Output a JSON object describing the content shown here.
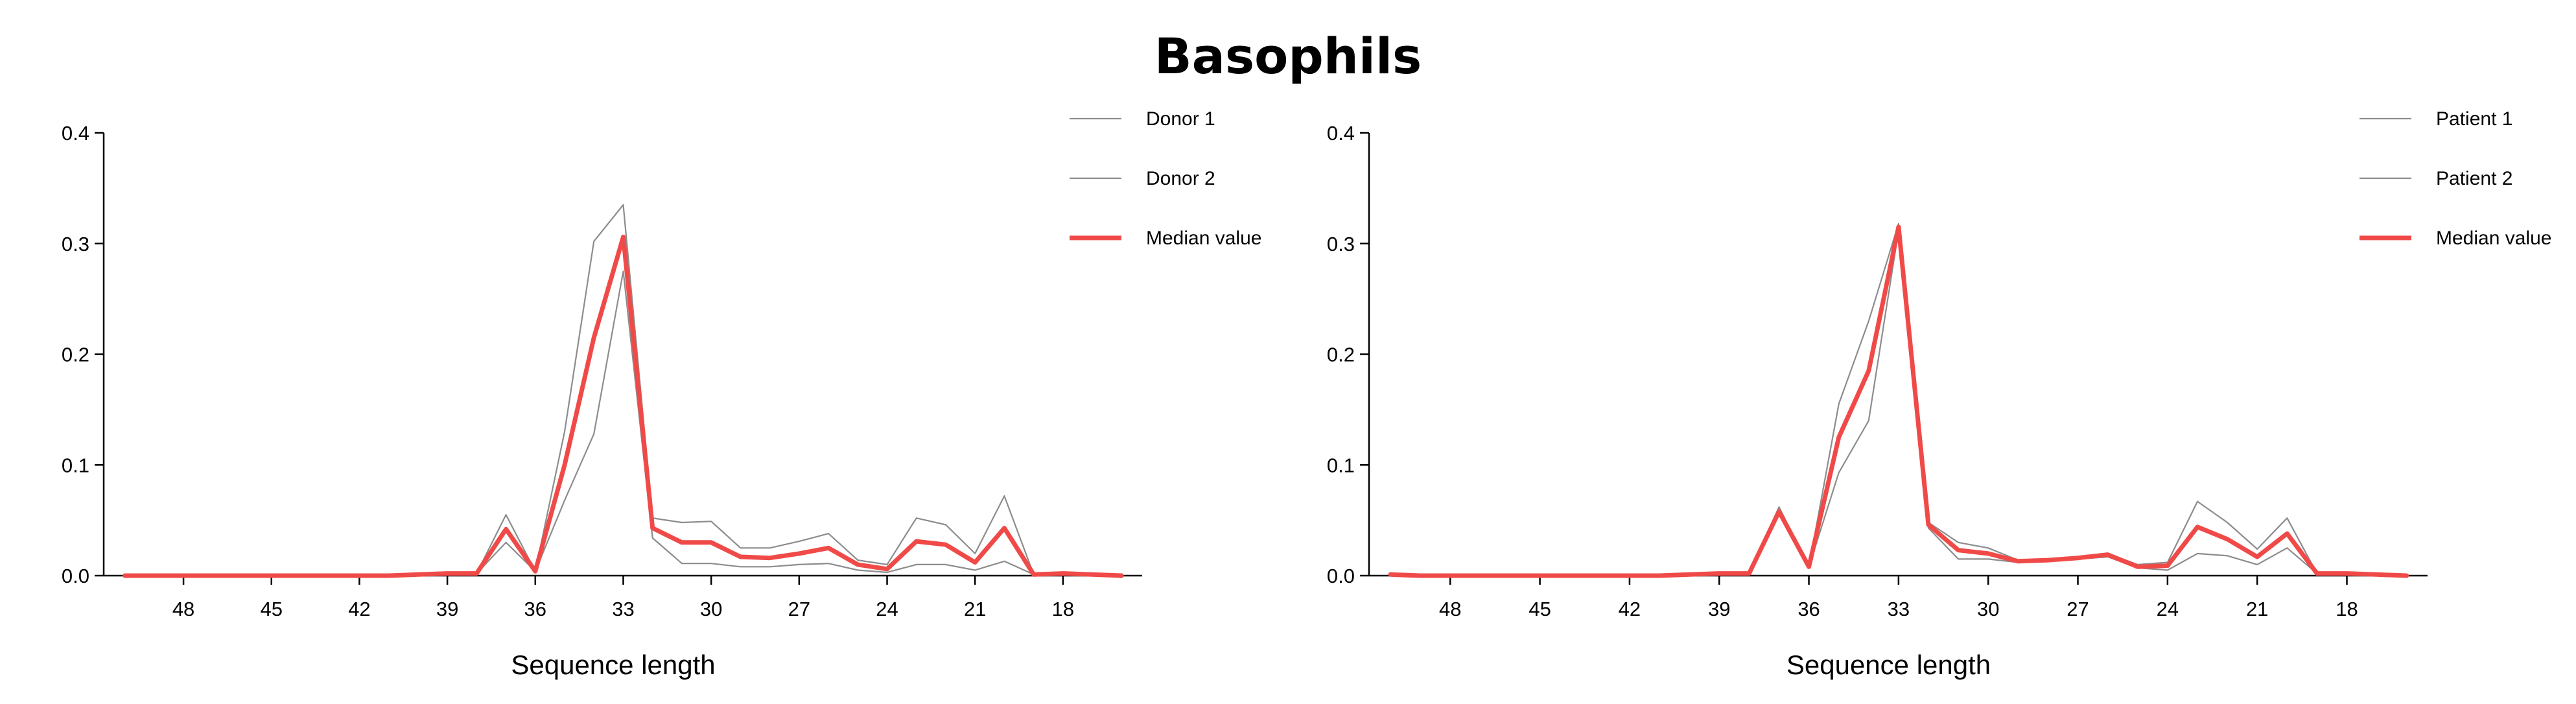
{
  "title": "Basophils",
  "chart_data": [
    {
      "type": "line",
      "x": [
        50,
        49,
        48,
        47,
        46,
        45,
        44,
        43,
        42,
        41,
        40,
        39,
        38,
        37,
        36,
        35,
        34,
        33,
        32,
        31,
        30,
        29,
        28,
        27,
        26,
        25,
        24,
        23,
        22,
        21,
        20,
        19,
        18,
        17,
        16
      ],
      "xticks": [
        48,
        45,
        42,
        39,
        36,
        33,
        30,
        27,
        24,
        21,
        18
      ],
      "xlim": [
        50.5,
        15.3
      ],
      "ylim": [
        0,
        0.4
      ],
      "yticks": [
        "0.0",
        "0.1",
        "0.2",
        "0.3",
        "0.4"
      ],
      "xlabel": "Sequence length",
      "ylabel": "",
      "legend_position": "top-right",
      "series": [
        {
          "name": "Donor 1",
          "color": "#8c8c8c",
          "width": 2.2,
          "values": [
            0,
            0,
            0,
            0,
            0,
            0,
            0,
            0,
            0,
            0,
            0.001,
            0.002,
            0.002,
            0.055,
            0.004,
            0.13,
            0.302,
            0.335,
            0.052,
            0.048,
            0.049,
            0.025,
            0.025,
            0.031,
            0.038,
            0.014,
            0.01,
            0.052,
            0.046,
            0.02,
            0.072,
            0.001,
            0.003,
            0.001,
            0
          ]
        },
        {
          "name": "Donor 2",
          "color": "#8c8c8c",
          "width": 2.2,
          "values": [
            0,
            0,
            0,
            0,
            0,
            0,
            0,
            0,
            0,
            0,
            0.001,
            0.002,
            0.002,
            0.03,
            0.004,
            0.068,
            0.128,
            0.275,
            0.034,
            0.011,
            0.011,
            0.008,
            0.008,
            0.01,
            0.011,
            0.005,
            0.003,
            0.01,
            0.01,
            0.005,
            0.013,
            0.001,
            0.002,
            0.001,
            0
          ]
        },
        {
          "name": "Median value",
          "color": "#f04a48",
          "width": 7,
          "values": [
            0,
            0,
            0,
            0,
            0,
            0,
            0,
            0,
            0,
            0,
            0.001,
            0.002,
            0.002,
            0.042,
            0.004,
            0.1,
            0.215,
            0.306,
            0.043,
            0.03,
            0.03,
            0.017,
            0.016,
            0.02,
            0.025,
            0.01,
            0.006,
            0.031,
            0.028,
            0.012,
            0.043,
            0.001,
            0.002,
            0.001,
            0
          ]
        }
      ]
    },
    {
      "type": "line",
      "x": [
        50,
        49,
        48,
        47,
        46,
        45,
        44,
        43,
        42,
        41,
        40,
        39,
        38,
        37,
        36,
        35,
        34,
        33,
        32,
        31,
        30,
        29,
        28,
        27,
        26,
        25,
        24,
        23,
        22,
        21,
        20,
        19,
        18,
        17,
        16
      ],
      "xticks": [
        48,
        45,
        42,
        39,
        36,
        33,
        30,
        27,
        24,
        21,
        18
      ],
      "xlim": [
        50.5,
        15.3
      ],
      "ylim": [
        0,
        0.4
      ],
      "yticks": [
        "0.0",
        "0.1",
        "0.2",
        "0.3",
        "0.4"
      ],
      "xlabel": "Sequence length",
      "ylabel": "",
      "legend_position": "top-right",
      "series": [
        {
          "name": "Patient 1",
          "color": "#8c8c8c",
          "width": 2.2,
          "values": [
            0.001,
            0,
            0,
            0,
            0,
            0,
            0,
            0,
            0,
            0,
            0.001,
            0.002,
            0.002,
            0.062,
            0.008,
            0.155,
            0.23,
            0.318,
            0.048,
            0.03,
            0.025,
            0.014,
            0.014,
            0.017,
            0.02,
            0.01,
            0.012,
            0.067,
            0.048,
            0.024,
            0.052,
            0.002,
            0.002,
            0.001,
            0
          ]
        },
        {
          "name": "Patient 2",
          "color": "#8c8c8c",
          "width": 2.2,
          "values": [
            0.001,
            0,
            0,
            0,
            0,
            0,
            0,
            0,
            0,
            0,
            0.001,
            0.002,
            0.002,
            0.055,
            0.008,
            0.093,
            0.14,
            0.312,
            0.043,
            0.015,
            0.015,
            0.012,
            0.013,
            0.015,
            0.017,
            0.007,
            0.005,
            0.02,
            0.018,
            0.01,
            0.025,
            0.002,
            0.002,
            0.001,
            0
          ]
        },
        {
          "name": "Median value",
          "color": "#f04a48",
          "width": 7,
          "values": [
            0.001,
            0,
            0,
            0,
            0,
            0,
            0,
            0,
            0,
            0,
            0.001,
            0.002,
            0.002,
            0.058,
            0.008,
            0.125,
            0.185,
            0.315,
            0.046,
            0.023,
            0.02,
            0.013,
            0.014,
            0.016,
            0.019,
            0.008,
            0.009,
            0.044,
            0.033,
            0.017,
            0.038,
            0.002,
            0.002,
            0.001,
            0
          ]
        }
      ]
    }
  ]
}
